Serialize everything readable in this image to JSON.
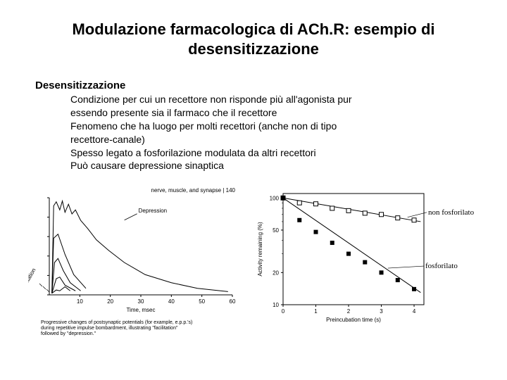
{
  "title_line1": "Modulazione farmacologica di ACh.R: esempio di",
  "title_line2": "desensitizzazione",
  "section_heading": "Desensitizzazione",
  "bullets": {
    "b1": "Condizione per cui un recettore non risponde più all'agonista pur",
    "b2": "essendo presente sia il farmaco che il recettore",
    "b3": "Fenomeno che ha luogo per molti recettori (anche non di tipo",
    "b4": "recettore-canale)",
    "b5": "Spesso legato a fosforilazione modulata da altri recettori",
    "b6": "Può causare depressione sinaptica"
  },
  "fig_left": {
    "header": "nerve, muscle, and synapse | 140",
    "xlabel": "Time, msec",
    "xticks": [
      "10",
      "20",
      "30",
      "40",
      "50",
      "60"
    ],
    "annotation_depression": "Depression",
    "annotation_facilitation": "Facilitation",
    "caption_line1": "Progressive changes of postsynaptic potentials (for example, e.p.p.'s)",
    "caption_line2": "during repetitive impulse bombardment, illustrating \"facilitation\"",
    "caption_line3": "followed by \"depression.\"",
    "background": "#ffffff",
    "line_color": "#000000",
    "curves": [
      [
        [
          13,
          128
        ],
        [
          18,
          124
        ],
        [
          22,
          125
        ],
        [
          28,
          120
        ],
        [
          34,
          125
        ]
      ],
      [
        [
          13,
          128
        ],
        [
          18,
          110
        ],
        [
          22,
          108
        ],
        [
          28,
          118
        ],
        [
          40,
          125
        ]
      ],
      [
        [
          13,
          128
        ],
        [
          16,
          90
        ],
        [
          20,
          85
        ],
        [
          26,
          100
        ],
        [
          34,
          115
        ],
        [
          46,
          125
        ]
      ],
      [
        [
          13,
          128
        ],
        [
          15,
          60
        ],
        [
          20,
          55
        ],
        [
          28,
          80
        ],
        [
          38,
          105
        ],
        [
          52,
          122
        ]
      ],
      [
        [
          13,
          128
        ],
        [
          15,
          20
        ],
        [
          18,
          15
        ],
        [
          22,
          25
        ],
        [
          25,
          14
        ],
        [
          28,
          28
        ],
        [
          32,
          18
        ],
        [
          36,
          30
        ],
        [
          40,
          25
        ],
        [
          46,
          38
        ],
        [
          54,
          48
        ],
        [
          64,
          62
        ],
        [
          78,
          75
        ],
        [
          96,
          90
        ],
        [
          120,
          105
        ],
        [
          150,
          115
        ],
        [
          180,
          122
        ],
        [
          215,
          126
        ]
      ]
    ]
  },
  "fig_right": {
    "ylabel": "Activity remaining (%)",
    "yticks": [
      "10",
      "20",
      "50",
      "100"
    ],
    "xlabel": "Preincubation time (s)",
    "xticks": [
      "0",
      "1",
      "2",
      "3",
      "4"
    ],
    "background": "#ffffff",
    "axis_color": "#000000",
    "open_marker_color": "#ffffff",
    "open_marker_stroke": "#000000",
    "filled_marker_color": "#000000",
    "annotation_top": "non fosforilato",
    "annotation_bottom": "fosforilato",
    "open_points": [
      [
        0,
        100
      ],
      [
        0.5,
        90
      ],
      [
        1,
        88
      ],
      [
        1.5,
        80
      ],
      [
        2,
        76
      ],
      [
        2.5,
        72
      ],
      [
        3,
        70
      ],
      [
        3.5,
        65
      ],
      [
        4,
        62
      ]
    ],
    "filled_points": [
      [
        0,
        100
      ],
      [
        0.5,
        62
      ],
      [
        1,
        48
      ],
      [
        1.5,
        38
      ],
      [
        2,
        30
      ],
      [
        2.5,
        25
      ],
      [
        3,
        20
      ],
      [
        3.5,
        17
      ],
      [
        4,
        14
      ]
    ],
    "open_line_end": [
      4.2,
      60
    ],
    "filled_line_end": [
      4.2,
      13
    ]
  }
}
